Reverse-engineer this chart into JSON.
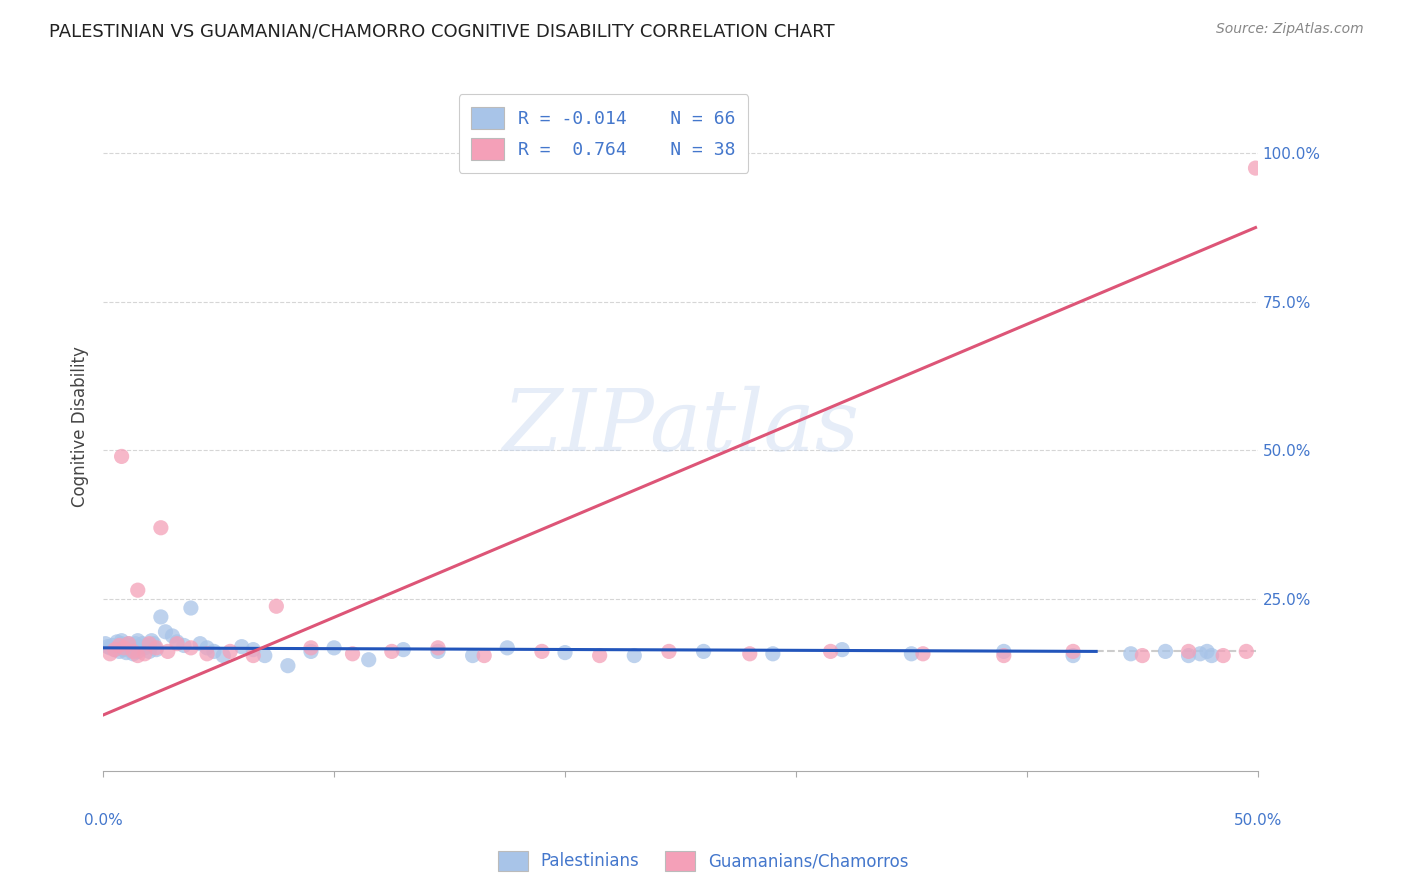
{
  "title": "PALESTINIAN VS GUAMANIAN/CHAMORRO COGNITIVE DISABILITY CORRELATION CHART",
  "source": "Source: ZipAtlas.com",
  "ylabel": "Cognitive Disability",
  "ylabel_right_ticks": [
    "100.0%",
    "75.0%",
    "50.0%",
    "25.0%"
  ],
  "ylabel_right_vals": [
    1.0,
    0.75,
    0.5,
    0.25
  ],
  "xlim": [
    0.0,
    0.5
  ],
  "ylim": [
    -0.04,
    1.12
  ],
  "group1_color": "#a8c4e8",
  "group2_color": "#f4a0b8",
  "trendline1_color": "#2255bb",
  "trendline2_color": "#dd5577",
  "watermark": "ZIPatlas",
  "background_color": "#ffffff",
  "grid_color": "#cccccc",
  "blue_color": "#4477cc",
  "palestinians_label": "Palestinians",
  "guamanians_label": "Guamanians/Chamorros",
  "pal_x": [
    0.001,
    0.002,
    0.003,
    0.004,
    0.005,
    0.006,
    0.007,
    0.008,
    0.008,
    0.009,
    0.009,
    0.01,
    0.01,
    0.011,
    0.011,
    0.012,
    0.012,
    0.013,
    0.013,
    0.014,
    0.014,
    0.015,
    0.015,
    0.016,
    0.017,
    0.018,
    0.019,
    0.02,
    0.021,
    0.022,
    0.023,
    0.025,
    0.027,
    0.03,
    0.032,
    0.035,
    0.038,
    0.042,
    0.045,
    0.048,
    0.052,
    0.06,
    0.065,
    0.07,
    0.08,
    0.09,
    0.1,
    0.115,
    0.13,
    0.145,
    0.16,
    0.175,
    0.2,
    0.23,
    0.26,
    0.29,
    0.32,
    0.35,
    0.39,
    0.42,
    0.445,
    0.46,
    0.47,
    0.475,
    0.478,
    0.48
  ],
  "pal_y": [
    0.175,
    0.17,
    0.168,
    0.172,
    0.165,
    0.178,
    0.162,
    0.175,
    0.18,
    0.17,
    0.165,
    0.172,
    0.16,
    0.175,
    0.168,
    0.165,
    0.172,
    0.168,
    0.158,
    0.175,
    0.165,
    0.18,
    0.162,
    0.17,
    0.175,
    0.168,
    0.172,
    0.162,
    0.18,
    0.175,
    0.165,
    0.22,
    0.195,
    0.188,
    0.178,
    0.172,
    0.235,
    0.175,
    0.168,
    0.162,
    0.155,
    0.17,
    0.165,
    0.155,
    0.138,
    0.162,
    0.168,
    0.148,
    0.165,
    0.162,
    0.155,
    0.168,
    0.16,
    0.155,
    0.162,
    0.158,
    0.165,
    0.158,
    0.162,
    0.155,
    0.158,
    0.162,
    0.155,
    0.158,
    0.162,
    0.155
  ],
  "gua_x": [
    0.003,
    0.005,
    0.007,
    0.009,
    0.011,
    0.013,
    0.015,
    0.018,
    0.02,
    0.023,
    0.025,
    0.028,
    0.032,
    0.038,
    0.045,
    0.055,
    0.065,
    0.075,
    0.09,
    0.108,
    0.125,
    0.145,
    0.165,
    0.19,
    0.215,
    0.245,
    0.28,
    0.315,
    0.355,
    0.39,
    0.42,
    0.45,
    0.47,
    0.485,
    0.495,
    0.499,
    0.008,
    0.015
  ],
  "gua_y": [
    0.158,
    0.165,
    0.172,
    0.168,
    0.175,
    0.162,
    0.265,
    0.158,
    0.175,
    0.168,
    0.37,
    0.162,
    0.175,
    0.168,
    0.158,
    0.162,
    0.155,
    0.238,
    0.168,
    0.158,
    0.162,
    0.168,
    0.155,
    0.162,
    0.155,
    0.162,
    0.158,
    0.162,
    0.158,
    0.155,
    0.162,
    0.155,
    0.162,
    0.155,
    0.162,
    0.975,
    0.49,
    0.155
  ],
  "trendline1_x": [
    0.0,
    0.43
  ],
  "trendline1_y": [
    0.168,
    0.162
  ],
  "dashed_line_y": 0.162,
  "dashed_line_x_start": 0.43,
  "dashed_line_x_end": 0.499,
  "trendline2_x": [
    0.0,
    0.499
  ],
  "trendline2_y": [
    0.055,
    0.875
  ]
}
